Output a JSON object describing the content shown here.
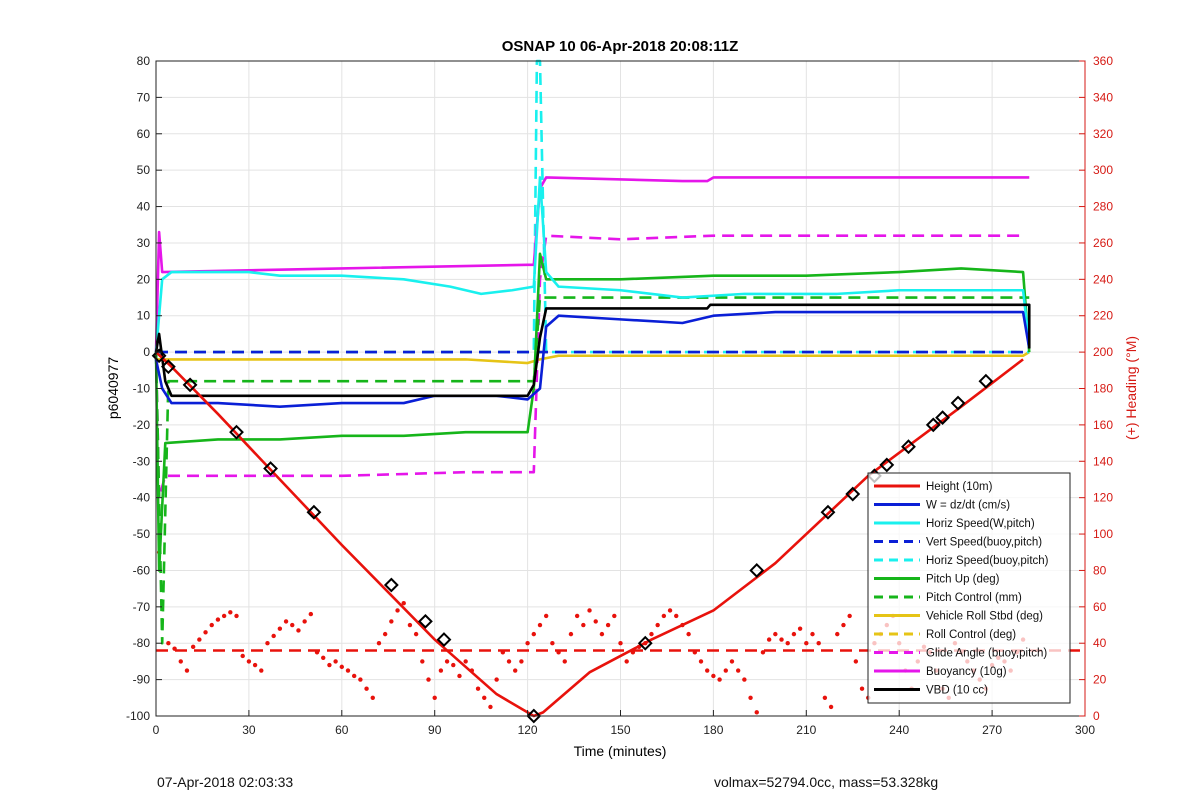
{
  "footer": {
    "left": "07-Apr-2018 02:03:33",
    "right": "volmax=52794.0cc, mass=53.328kg"
  },
  "chart_data": {
    "type": "line",
    "title": "OSNAP 10 06-Apr-2018 20:08:11Z",
    "xlabel": "Time (minutes)",
    "ylabel": "p6040977",
    "ylabel_right": "(+) Heading (°M)",
    "xlim": [
      0,
      300
    ],
    "ylim": [
      -100,
      80
    ],
    "ylim_right": [
      0,
      360
    ],
    "xticks": [
      0,
      30,
      60,
      90,
      120,
      150,
      180,
      210,
      240,
      270,
      300
    ],
    "yticks": [
      80,
      70,
      60,
      50,
      40,
      30,
      20,
      10,
      0,
      -10,
      -20,
      -30,
      -40,
      -50,
      -60,
      -70,
      -80,
      -90,
      -100
    ],
    "yticks_right": [
      360,
      340,
      320,
      300,
      280,
      260,
      240,
      220,
      200,
      180,
      160,
      140,
      120,
      100,
      80,
      60,
      40,
      20,
      0
    ],
    "grid": true,
    "legend_position": "bottom-right",
    "colors": {
      "red": "#e8120c",
      "blue": "#0a1fd6",
      "cyan": "#19f0ee",
      "green": "#16b51a",
      "yellow": "#e6c416",
      "magenta": "#e516ea",
      "black": "#000000",
      "right_axis": "#d61a14"
    },
    "series": [
      {
        "name": "Height (10m)",
        "color": "red",
        "dash": "solid",
        "x": [
          0,
          5,
          20,
          40,
          60,
          90,
          110,
          122,
          125,
          140,
          160,
          180,
          200,
          230,
          260,
          280
        ],
        "y": [
          0,
          -4,
          -17,
          -35,
          -53,
          -79,
          -94,
          -100,
          -99,
          -88,
          -79,
          -71,
          -58,
          -34,
          -15,
          -2
        ]
      },
      {
        "name": "W = dz/dt (cm/s)",
        "color": "blue",
        "dash": "solid",
        "x": [
          0,
          2,
          5,
          20,
          40,
          60,
          80,
          90,
          100,
          110,
          120,
          124,
          126,
          130,
          150,
          170,
          180,
          200,
          240,
          260,
          280,
          282
        ],
        "y": [
          -2,
          -10,
          -14,
          -14,
          -15,
          -14,
          -14,
          -12,
          -12,
          -12,
          -13,
          -10,
          7,
          10,
          9,
          8,
          10,
          11,
          11,
          11,
          11,
          1
        ]
      },
      {
        "name": "Horiz Speed(W,pitch)",
        "color": "cyan",
        "dash": "solid",
        "x": [
          0,
          2,
          5,
          20,
          30,
          40,
          60,
          80,
          95,
          105,
          115,
          122,
          124,
          126,
          130,
          150,
          170,
          190,
          220,
          240,
          260,
          280,
          282
        ],
        "y": [
          0,
          20,
          22,
          22,
          22,
          21,
          21,
          20,
          18,
          16,
          17,
          18,
          48,
          22,
          18,
          17,
          15,
          16,
          16,
          17,
          17,
          17,
          2
        ]
      },
      {
        "name": "Vert Speed(buoy,pitch)",
        "color": "blue",
        "dash": "dashed",
        "x": [
          0,
          282
        ],
        "y": [
          0,
          0
        ]
      },
      {
        "name": "Horiz Speed(buoy,pitch)",
        "color": "cyan",
        "dash": "dashed",
        "x": [
          0,
          120,
          122,
          123,
          124,
          126,
          282
        ],
        "y": [
          0,
          0,
          0,
          80,
          80,
          0,
          0
        ]
      },
      {
        "name": "Pitch Up (deg)",
        "color": "green",
        "dash": "solid",
        "x": [
          0,
          1,
          3,
          20,
          40,
          60,
          80,
          100,
          120,
          122,
          124,
          126,
          150,
          180,
          210,
          240,
          260,
          280,
          282
        ],
        "y": [
          0,
          -60,
          -25,
          -24,
          -24,
          -23,
          -23,
          -22,
          -22,
          -10,
          27,
          20,
          20,
          21,
          21,
          22,
          23,
          22,
          0
        ]
      },
      {
        "name": "Pitch Control (mm)",
        "color": "green",
        "dash": "dashed",
        "x": [
          0,
          2,
          4,
          120,
          122,
          124,
          126,
          282
        ],
        "y": [
          0,
          -80,
          -8,
          -8,
          -8,
          15,
          15,
          15
        ]
      },
      {
        "name": "Vehicle Roll Stbd (deg)",
        "color": "yellow",
        "dash": "solid",
        "x": [
          0,
          10,
          20,
          40,
          60,
          80,
          100,
          120,
          124,
          130,
          150,
          170,
          190,
          210,
          230,
          250,
          270,
          280,
          282
        ],
        "y": [
          -2,
          -2,
          -2,
          -2,
          -2,
          -2,
          -2,
          -3,
          -2,
          -1,
          -1,
          -1,
          -1,
          -1,
          -1,
          -1,
          -1,
          -1,
          0
        ]
      },
      {
        "name": "Roll Control (deg)",
        "color": "yellow",
        "dash": "dashed",
        "x": [
          0,
          282
        ],
        "y": [
          0,
          0
        ]
      },
      {
        "name": "Glide Angle (buoy,pitch)",
        "color": "magenta",
        "dash": "dashed",
        "x": [
          0,
          1,
          3,
          20,
          60,
          100,
          120,
          122,
          124,
          126,
          150,
          180,
          220,
          260,
          280
        ],
        "y": [
          0,
          -40,
          -34,
          -34,
          -34,
          -33,
          -33,
          -33,
          20,
          32,
          31,
          32,
          32,
          32,
          32
        ]
      },
      {
        "name": "Buoyancy (10g)",
        "color": "magenta",
        "dash": "solid",
        "x": [
          0,
          1,
          2,
          60,
          120,
          122,
          124,
          126,
          170,
          178,
          180,
          230,
          282
        ],
        "y": [
          0,
          33,
          22,
          23,
          24,
          24,
          45,
          48,
          47,
          47,
          48,
          48,
          48
        ]
      },
      {
        "name": "VBD (10 cc)",
        "color": "black",
        "dash": "solid",
        "x": [
          0,
          1,
          3,
          5,
          120,
          122,
          124,
          126,
          178,
          179,
          282,
          282
        ],
        "y": [
          0,
          5,
          -8,
          -12,
          -12,
          -9,
          4,
          12,
          12,
          13,
          13,
          1
        ]
      }
    ],
    "heading_reference": {
      "axis": "right",
      "value": 36,
      "color": "red",
      "dash": "dashed"
    },
    "heading_samples": {
      "axis": "right",
      "color": "red",
      "x": [
        1,
        2,
        4,
        6,
        8,
        10,
        12,
        14,
        16,
        18,
        20,
        22,
        24,
        26,
        28,
        30,
        32,
        34,
        36,
        38,
        40,
        42,
        44,
        46,
        48,
        50,
        52,
        54,
        56,
        58,
        60,
        62,
        64,
        66,
        68,
        70,
        72,
        74,
        76,
        78,
        80,
        82,
        84,
        86,
        88,
        90,
        92,
        94,
        96,
        98,
        100,
        102,
        104,
        106,
        108,
        110,
        112,
        114,
        116,
        118,
        120,
        122,
        124,
        126,
        128,
        130,
        132,
        134,
        136,
        138,
        140,
        142,
        144,
        146,
        148,
        150,
        152,
        154,
        156,
        158,
        160,
        162,
        164,
        166,
        168,
        170,
        172,
        174,
        176,
        178,
        180,
        182,
        184,
        186,
        188,
        190,
        192,
        194,
        196,
        198,
        200,
        202,
        204,
        206,
        208,
        210,
        212,
        214,
        216,
        218,
        220,
        222,
        224,
        226,
        228,
        230,
        232,
        234,
        236,
        238,
        240,
        242,
        244,
        246,
        248,
        250,
        252,
        254,
        256,
        258,
        260,
        262,
        264,
        266,
        268,
        270,
        272,
        274,
        276,
        278,
        280
      ],
      "y": [
        90,
        70,
        40,
        37,
        30,
        25,
        38,
        42,
        46,
        50,
        53,
        55,
        57,
        55,
        33,
        30,
        28,
        25,
        40,
        44,
        48,
        52,
        50,
        47,
        52,
        56,
        35,
        32,
        28,
        30,
        27,
        25,
        22,
        20,
        15,
        10,
        40,
        45,
        52,
        58,
        62,
        50,
        45,
        30,
        20,
        10,
        25,
        30,
        28,
        22,
        30,
        25,
        15,
        10,
        5,
        20,
        35,
        30,
        25,
        30,
        40,
        45,
        50,
        55,
        40,
        35,
        30,
        45,
        55,
        50,
        58,
        52,
        45,
        50,
        55,
        40,
        30,
        35,
        38,
        40,
        45,
        50,
        55,
        58,
        55,
        50,
        45,
        35,
        30,
        25,
        22,
        20,
        25,
        30,
        25,
        20,
        10,
        2,
        35,
        42,
        45,
        42,
        40,
        45,
        48,
        40,
        45,
        40,
        10,
        5,
        45,
        50,
        55,
        30,
        15,
        10,
        40,
        45,
        50,
        55,
        40,
        25,
        15,
        30,
        38,
        35,
        25,
        15,
        10,
        40,
        35,
        30,
        25,
        20,
        15,
        28,
        32,
        30,
        25,
        35,
        42
      ]
    },
    "height_markers": {
      "x": [
        1,
        4,
        11,
        26,
        37,
        51,
        76,
        87,
        93,
        122,
        158,
        194,
        217,
        225,
        232,
        236,
        243,
        251,
        254,
        259,
        268
      ],
      "y": [
        -1,
        -4,
        -9,
        -22,
        -32,
        -44,
        -64,
        -74,
        -79,
        -100,
        -80,
        -60,
        -44,
        -39,
        -34,
        -31,
        -26,
        -20,
        -18,
        -14,
        -8
      ]
    }
  }
}
